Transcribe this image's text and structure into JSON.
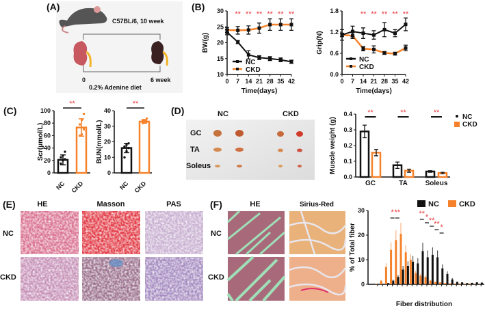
{
  "panel_labels": {
    "a": "(A)",
    "b": "(B)",
    "c": "(C)",
    "d": "(D)",
    "e": "(E)",
    "f": "(F)"
  },
  "panel_a": {
    "strain": "C57BL/6, 10 week",
    "start": "0",
    "end": "6 week",
    "diet": "0.2% Adenine diet"
  },
  "panel_d_photo": {
    "col_nc": "NC",
    "col_ckd": "CKD",
    "rows": [
      "GC",
      "TA",
      "Soleus"
    ]
  },
  "panel_e": {
    "headers": [
      "HE",
      "Masson",
      "PAS"
    ],
    "rows": [
      "NC",
      "CKD"
    ]
  },
  "panel_f": {
    "headers": [
      "HE",
      "Sirius-Red"
    ],
    "rows": [
      "NC",
      "CKD"
    ]
  },
  "colors": {
    "nc": "#111111",
    "ckd": "#f5822a",
    "significance": "#e8383d"
  },
  "chart_data": [
    {
      "id": "bw",
      "type": "line",
      "xlabel": "Time(days)",
      "ylabel": "BW(g)",
      "xlim": [
        0,
        42
      ],
      "ylim": [
        10,
        30
      ],
      "xticks": [
        "0",
        "7",
        "14",
        "21",
        "28",
        "35",
        "42"
      ],
      "yticks": [
        "10",
        "15",
        "20",
        "25",
        "30"
      ],
      "x": [
        0,
        7,
        14,
        21,
        28,
        35,
        42
      ],
      "series": [
        {
          "name": "NC",
          "color": "#111111",
          "values": [
            23.3,
            20.2,
            16.2,
            15.3,
            15.0,
            14.6,
            14.0
          ],
          "sd": [
            0.8,
            0.5,
            1.3,
            0.6,
            0.6,
            0.6,
            0.5
          ]
        },
        {
          "name": "CKD",
          "color": "#f5822a",
          "values": [
            24.0,
            23.9,
            24.0,
            24.6,
            25.7,
            25.7,
            25.7
          ],
          "sd": [
            0.8,
            1.2,
            1.3,
            1.6,
            1.8,
            1.8,
            1.8
          ]
        }
      ],
      "significance": [
        {
          "x": 7,
          "label": "**"
        },
        {
          "x": 14,
          "label": "**"
        },
        {
          "x": 21,
          "label": "**"
        },
        {
          "x": 28,
          "label": "**"
        },
        {
          "x": 35,
          "label": "**"
        },
        {
          "x": 42,
          "label": "**"
        }
      ],
      "legend": "bottom-left"
    },
    {
      "id": "grip",
      "type": "line",
      "xlabel": "Time(days)",
      "ylabel": "Grip(N)",
      "xlim": [
        0,
        42
      ],
      "ylim": [
        0,
        1.8
      ],
      "xticks": [
        "0",
        "7",
        "14",
        "21",
        "28",
        "35",
        "42"
      ],
      "yticks": [
        "0.0",
        "0.6",
        "1.2",
        "1.8"
      ],
      "x": [
        0,
        7,
        14,
        21,
        28,
        35,
        42
      ],
      "series": [
        {
          "name": "NC",
          "color": "#111111",
          "values": [
            1.12,
            1.22,
            1.17,
            1.12,
            1.27,
            1.17,
            1.42
          ],
          "sd": [
            0.15,
            0.15,
            0.15,
            0.12,
            0.2,
            0.1,
            0.18
          ]
        },
        {
          "name": "CKD",
          "color": "#f5822a",
          "values": [
            1.12,
            1.1,
            0.73,
            0.71,
            0.61,
            0.59,
            0.75
          ],
          "sd": [
            0.05,
            0.08,
            0.06,
            0.1,
            0.04,
            0.04,
            0.08
          ]
        }
      ],
      "significance": [
        {
          "x": 14,
          "label": "**"
        },
        {
          "x": 21,
          "label": "**"
        },
        {
          "x": 28,
          "label": "**"
        },
        {
          "x": 35,
          "label": "**"
        },
        {
          "x": 42,
          "label": "**"
        }
      ],
      "legend": "bottom-left"
    },
    {
      "id": "scr",
      "type": "bar",
      "ylabel": "Scr(μmol/L)",
      "ylim": [
        0,
        100
      ],
      "yticks": [
        "0",
        "20",
        "40",
        "60",
        "80",
        "100"
      ],
      "categories": [
        "NC",
        "CKD"
      ],
      "values": [
        21,
        73
      ],
      "sd": [
        8,
        14
      ],
      "points": [
        [
          15,
          20,
          22,
          25,
          28,
          34
        ],
        [
          60,
          62,
          70,
          78,
          85,
          95
        ]
      ],
      "significance": "**"
    },
    {
      "id": "bun",
      "type": "bar",
      "ylabel": "BUN(mmol/L)",
      "ylim": [
        0,
        40
      ],
      "yticks": [
        "0",
        "10",
        "20",
        "30",
        "40"
      ],
      "categories": [
        "NC",
        "CKD"
      ],
      "values": [
        16,
        33
      ],
      "sd": [
        3,
        1
      ],
      "points": [
        [
          10,
          14,
          16,
          17,
          18,
          19
        ],
        [
          32,
          33,
          33,
          34,
          34,
          35
        ]
      ],
      "significance": "**"
    },
    {
      "id": "muscle",
      "type": "bar",
      "ylabel": "Muscle weight (g)",
      "ylim": [
        0,
        0.4
      ],
      "yticks": [
        "0.0",
        "0.1",
        "0.2",
        "0.3",
        "0.4"
      ],
      "categories": [
        "GC",
        "TA",
        "Soleus"
      ],
      "series": [
        {
          "name": "NC",
          "color": "#111111",
          "values": [
            0.29,
            0.075,
            0.035
          ],
          "sd": [
            0.04,
            0.02,
            0.005
          ]
        },
        {
          "name": "CKD",
          "color": "#f5822a",
          "values": [
            0.155,
            0.04,
            0.025
          ],
          "sd": [
            0.02,
            0.01,
            0.005
          ]
        }
      ],
      "significance": [
        "**",
        "**",
        "**"
      ],
      "legend": "top-right"
    },
    {
      "id": "fiber",
      "type": "bar",
      "xlabel": "Fiber distribution",
      "ylabel": "% of Total fiber",
      "ylim": [
        0,
        30
      ],
      "yticks": [
        "0",
        "10",
        "20",
        "30"
      ],
      "series": [
        {
          "name": "NC",
          "color": "#111111",
          "values": [
            0,
            0.1,
            0.5,
            1.5,
            3,
            6,
            7.5,
            9.2,
            8.5,
            13.5,
            11,
            12,
            11,
            6.5,
            4.2,
            2,
            1,
            0.8,
            0.5,
            0.6,
            0.8,
            0.7
          ]
        },
        {
          "name": "CKD",
          "color": "#f5822a",
          "values": [
            0.2,
            1.5,
            7,
            14,
            18,
            20.5,
            13,
            10,
            4.5,
            3.5,
            3,
            1.5,
            1,
            0.8,
            0.5,
            0.4,
            0.3,
            0.3,
            0.2,
            0.3,
            0.2,
            0.1
          ]
        }
      ],
      "significance": [
        {
          "bin": 3,
          "label": "*"
        },
        {
          "bin": 4,
          "label": "**"
        },
        {
          "bin": 9,
          "label": "**"
        },
        {
          "bin": 10,
          "label": "*"
        },
        {
          "bin": 11,
          "label": "**"
        },
        {
          "bin": 12,
          "label": "**"
        },
        {
          "bin": 13,
          "label": "*"
        }
      ],
      "legend": "top-right"
    }
  ]
}
